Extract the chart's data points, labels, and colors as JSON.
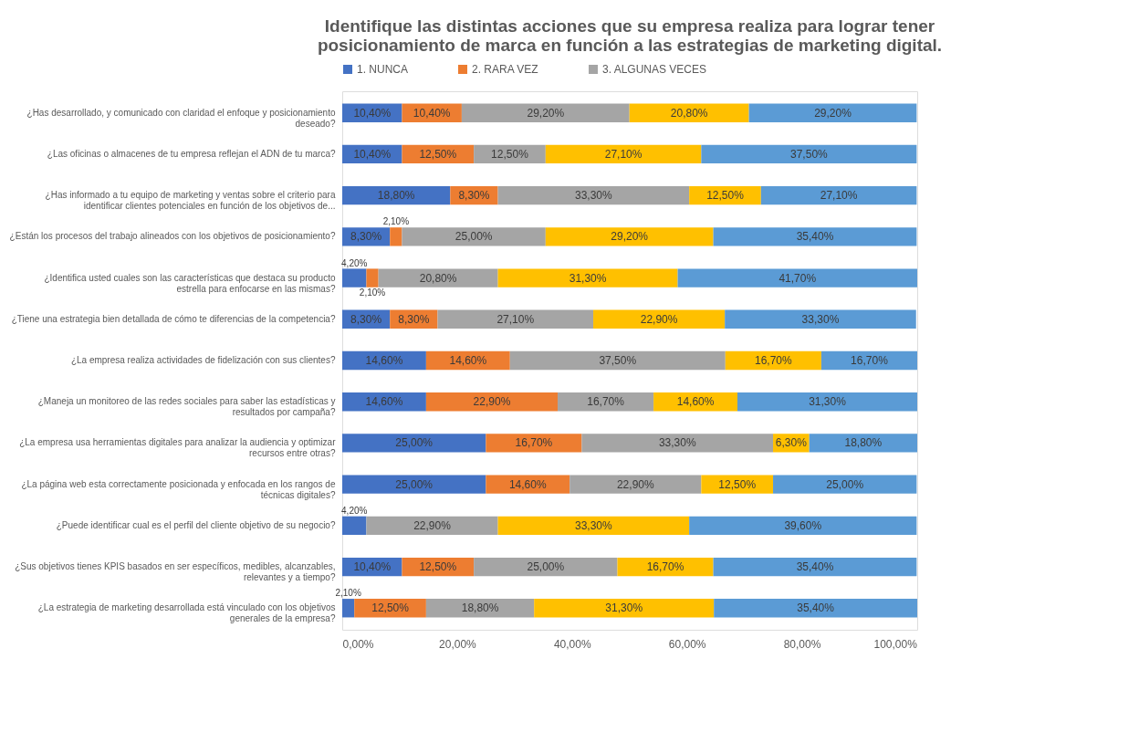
{
  "chart_data": {
    "type": "bar",
    "orientation": "horizontal",
    "stacked": true,
    "title": [
      "Identifique las distintas acciones que su empresa realiza para lograr tener",
      "posicionamiento  de marca en función a las estrategias de marketing digital."
    ],
    "categories": [
      "¿Has desarrollado, y comunicado con claridad el enfoque y posicionamiento deseado?",
      "¿Las oficinas o almacenes de tu empresa reflejan el ADN de tu marca?",
      "¿Has informado a tu equipo de marketing y ventas sobre el criterio para identificar clientes potenciales en función de los objetivos de...",
      "¿Están los procesos del trabajo alineados con los objetivos de posicionamiento?",
      "¿Identifica usted cuales son las características que destaca su producto estrella para enfocarse en las mismas?",
      "¿Tiene una estrategia bien detallada de cómo te diferencias de la competencia?",
      "¿La empresa realiza actividades de fidelización con sus clientes?",
      "¿Maneja un monitoreo de las redes sociales para saber las estadísticas y resultados por campaña?",
      "¿La empresa usa herramientas digitales para analizar la audiencia y optimizar recursos entre otras?",
      "¿La página web esta correctamente posicionada y enfocada en los rangos de técnicas digitales?",
      "¿Puede identificar cual es el perfil del cliente objetivo de su negocio?",
      "¿Sus objetivos tienes KPIS basados en ser específicos, medibles, alcanzables, relevantes y a tiempo?",
      "¿La estrategia de marketing desarrollada está vinculado con los objetivos generales de la empresa?"
    ],
    "series": [
      {
        "name": "1.     NUNCA",
        "color": "#4472c4",
        "values": [
          10.4,
          10.4,
          18.8,
          8.3,
          4.2,
          8.3,
          14.6,
          14.6,
          25.0,
          25.0,
          4.2,
          10.4,
          2.1
        ],
        "value_labels": [
          "10,40%",
          "10,40%",
          "18,80%",
          "8,30%",
          "4,20%",
          "8,30%",
          "14,60%",
          "14,60%",
          "25,00%",
          "25,00%",
          "4,20%",
          "10,40%",
          "2,10%"
        ]
      },
      {
        "name": "2.     RARA VEZ",
        "color": "#ed7d31",
        "values": [
          10.4,
          12.5,
          8.3,
          2.1,
          2.1,
          8.3,
          14.6,
          22.9,
          16.7,
          14.6,
          null,
          12.5,
          12.5
        ],
        "value_labels": [
          "10,40%",
          "12,50%",
          "8,30%",
          "2,10%",
          "2,10%",
          "8,30%",
          "14,60%",
          "22,90%",
          "16,70%",
          "14,60%",
          null,
          "12,50%",
          "12,50%"
        ]
      },
      {
        "name": "3.     ALGUNAS VECES",
        "color": "#a5a5a5",
        "values": [
          29.2,
          12.5,
          33.3,
          25.0,
          20.8,
          27.1,
          37.5,
          16.7,
          33.3,
          22.9,
          22.9,
          25.0,
          18.8
        ],
        "value_labels": [
          "29,20%",
          "12,50%",
          "33,30%",
          "25,00%",
          "20,80%",
          "27,10%",
          "37,50%",
          "16,70%",
          "33,30%",
          "22,90%",
          "22,90%",
          "25,00%",
          "18,80%"
        ]
      },
      {
        "color": "#ffc000",
        "values": [
          20.8,
          27.1,
          12.5,
          29.2,
          31.3,
          22.9,
          16.7,
          14.6,
          6.3,
          12.5,
          33.3,
          16.7,
          31.3
        ],
        "value_labels": [
          "20,80%",
          "27,10%",
          "12,50%",
          "29,20%",
          "31,30%",
          "22,90%",
          "16,70%",
          "14,60%",
          "6,30%",
          "12,50%",
          "33,30%",
          "16,70%",
          "31,30%"
        ]
      },
      {
        "color": "#5b9bd5",
        "values": [
          29.2,
          37.5,
          27.1,
          35.4,
          41.7,
          33.3,
          16.7,
          31.3,
          18.8,
          25.0,
          39.6,
          35.4,
          35.4
        ],
        "value_labels": [
          "29,20%",
          "37,50%",
          "27,10%",
          "35,40%",
          "41,70%",
          "33,30%",
          "16,70%",
          "31,30%",
          "18,80%",
          "25,00%",
          "39,60%",
          "35,40%",
          "35,40%"
        ]
      }
    ],
    "xlim": [
      0,
      100.1
    ],
    "xticks": [
      {
        "value": 0,
        "label": "0,00%"
      },
      {
        "value": 20,
        "label": "20,00%"
      },
      {
        "value": 40,
        "label": "40,00%"
      },
      {
        "value": 60,
        "label": "60,00%"
      },
      {
        "value": 80,
        "label": "80,00%"
      },
      {
        "value": 100,
        "label": "100,00%"
      }
    ],
    "legend": "top",
    "grid": false
  }
}
